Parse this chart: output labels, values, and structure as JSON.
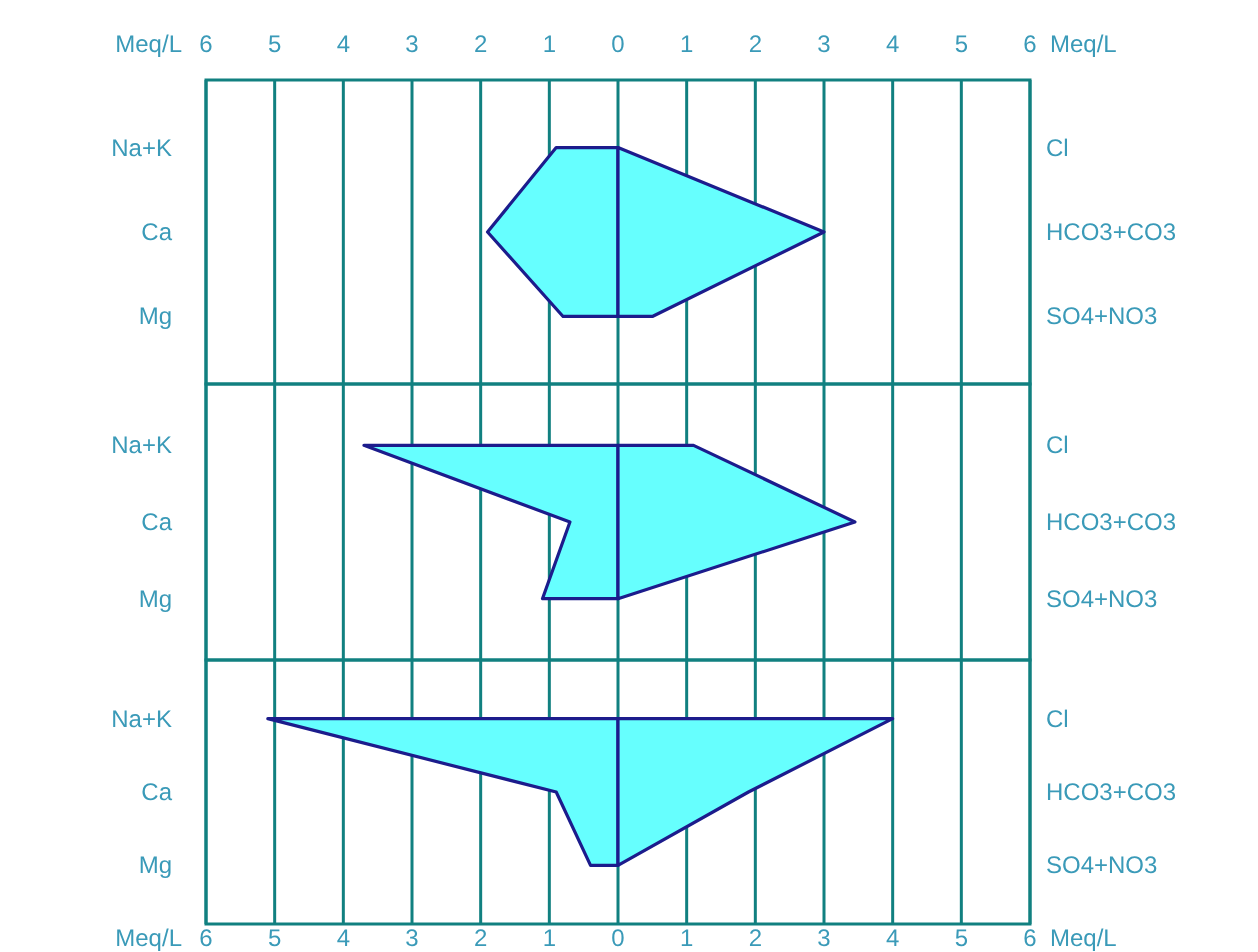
{
  "chart_data": [
    {
      "type": "area",
      "orientation": "horizontal",
      "categories": [
        "Na+K",
        "Ca",
        "Mg"
      ],
      "y2_categories": [
        "Cl",
        "HCO3+CO3",
        "SO4+NO3"
      ],
      "xlim": [
        -6,
        6
      ],
      "xticks": [
        {
          "value": -6,
          "label": null
        },
        {
          "value": -5,
          "label": null
        },
        {
          "value": -4,
          "label": null
        },
        {
          "value": -3,
          "label": null
        },
        {
          "value": -2,
          "label": null
        },
        {
          "value": -1,
          "label": null
        },
        {
          "value": 0,
          "label": null
        },
        {
          "value": 1,
          "label": null
        },
        {
          "value": 2,
          "label": null
        },
        {
          "value": 3,
          "label": null
        },
        {
          "value": 4,
          "label": null
        },
        {
          "value": 5,
          "label": null
        },
        {
          "value": 6,
          "label": null
        }
      ],
      "x2lim": [
        -6,
        6
      ],
      "x2ticks": [
        {
          "value": -6,
          "label": "6"
        },
        {
          "value": -5,
          "label": "5"
        },
        {
          "value": -4,
          "label": "4"
        },
        {
          "value": -3,
          "label": "3"
        },
        {
          "value": -2,
          "label": "2"
        },
        {
          "value": -1,
          "label": "1"
        },
        0,
        1,
        2,
        3,
        4,
        5,
        6
      ],
      "x2label": "Meq/L",
      "tick_labels": "y",
      "grid": "x",
      "series": [
        {
          "color": "#66ffff",
          "values": [
            -0.9,
            -1.9,
            -0.8
          ]
        },
        {
          "color": "#66fffe",
          "values": [
            0,
            3.0,
            0.5
          ]
        }
      ]
    },
    {
      "type": "area",
      "orientation": "horizontal",
      "categories": [
        "Na+K",
        "Ca",
        "Mg"
      ],
      "y2_categories": [
        "Cl",
        "HCO3+CO3",
        "SO4+NO3"
      ],
      "xlim": [
        -6,
        6
      ],
      "xticks": [
        {
          "value": -6,
          "label": null
        },
        {
          "value": -5,
          "label": null
        },
        {
          "value": -4,
          "label": null
        },
        {
          "value": -3,
          "label": null
        },
        {
          "value": -2,
          "label": null
        },
        {
          "value": -1,
          "label": null
        },
        {
          "value": 0,
          "label": null
        },
        {
          "value": 1,
          "label": null
        },
        {
          "value": 2,
          "label": null
        },
        {
          "value": 3,
          "label": null
        },
        {
          "value": 4,
          "label": null
        },
        {
          "value": 5,
          "label": null
        },
        {
          "value": 6,
          "label": null
        }
      ],
      "tick_labels": "y",
      "grid": "x",
      "series": [
        {
          "color": "#66ffff",
          "values": [
            -3.7,
            -0.7,
            -1.1
          ]
        },
        {
          "color": "#66fffe",
          "values": [
            1.1,
            3.45,
            0
          ]
        }
      ]
    },
    {
      "type": "area",
      "orientation": "horizontal",
      "categories": [
        "Na+K",
        "Ca",
        "Mg"
      ],
      "y2_categories": [
        "Cl",
        "HCO3+CO3",
        "SO4+NO3"
      ],
      "xlim": [
        -6,
        6
      ],
      "xticks": [
        {
          "value": -6,
          "label": "6"
        },
        {
          "value": -5,
          "label": "5"
        },
        {
          "value": -4,
          "label": "4"
        },
        {
          "value": -3,
          "label": "3"
        },
        {
          "value": -2,
          "label": "2"
        },
        {
          "value": -1,
          "label": "1"
        },
        0,
        1,
        2,
        3,
        4,
        5,
        6
      ],
      "xlabel": "Meq/L",
      "grid": "x",
      "series": [
        {
          "color": "#66ffff",
          "values": [
            -5.1,
            -0.9,
            -0.4
          ]
        },
        {
          "color": "#66fffe",
          "values": [
            4.0,
            1.9,
            0
          ]
        }
      ]
    }
  ]
}
